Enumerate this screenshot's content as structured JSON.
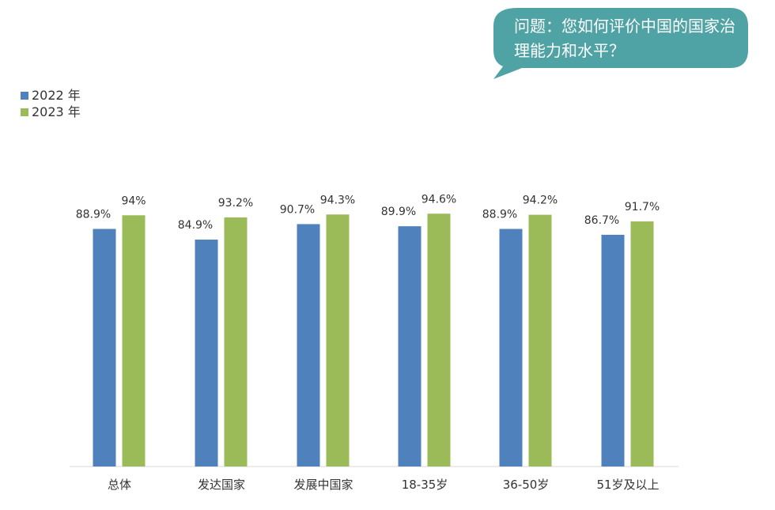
{
  "question": "问题：您如何评价中国的国家治理能力和水平？",
  "colors": {
    "bubble": "#4fa3a5",
    "series_2022": "#4f81bd",
    "series_2023": "#9bbb59",
    "axis": "#d9d9d9"
  },
  "chart_data": {
    "type": "bar",
    "categories": [
      "总体",
      "发达国家",
      "发展中国家",
      "18-35岁",
      "36-50岁",
      "51岁及以上"
    ],
    "series": [
      {
        "name": "2022 年",
        "values": [
          88.9,
          84.9,
          90.7,
          89.9,
          88.9,
          86.7
        ],
        "labels": [
          "88.9%",
          "84.9%",
          "90.7%",
          "89.9%",
          "88.9%",
          "86.7%"
        ]
      },
      {
        "name": "2023 年",
        "values": [
          94,
          93.2,
          94.3,
          94.6,
          94.2,
          91.7
        ],
        "labels": [
          "94%",
          "93.2%",
          "94.3%",
          "94.6%",
          "94.2%",
          "91.7%"
        ]
      }
    ],
    "y_axis_visible": false,
    "grid": false,
    "legend_position": "top-left"
  }
}
